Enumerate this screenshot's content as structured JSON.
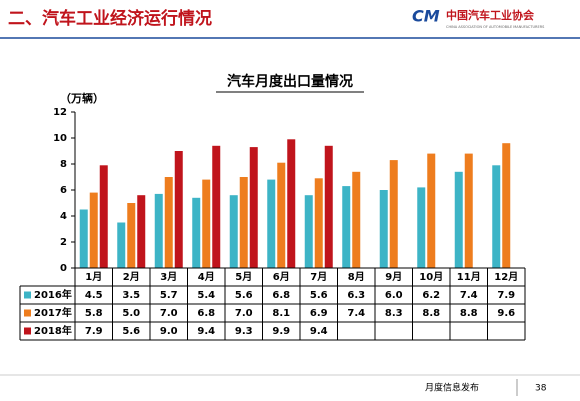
{
  "header": {
    "title": "二、汽车工业经济运行情况",
    "logo_text": "中国汽车工业协会",
    "logo_subtitle": "CHINA ASSOCIATION OF AUTOMOBILE MANUFACTURERS"
  },
  "chart_data": {
    "type": "bar",
    "title": "汽车月度出口量情况",
    "y_label": "（万辆）",
    "categories": [
      "1月",
      "2月",
      "3月",
      "4月",
      "5月",
      "6月",
      "7月",
      "8月",
      "9月",
      "10月",
      "11月",
      "12月"
    ],
    "series": [
      {
        "name": "2016年",
        "color": "#3db4c6",
        "values": [
          4.5,
          3.5,
          5.7,
          5.4,
          5.6,
          6.8,
          5.6,
          6.3,
          6.0,
          6.2,
          7.4,
          7.9
        ],
        "value_labels": [
          "4.5",
          "3.5",
          "5.7",
          "5.4",
          "5.6",
          "6.8",
          "5.6",
          "6.3",
          "6.0",
          "6.2",
          "7.4",
          "7.9"
        ]
      },
      {
        "name": "2017年",
        "color": "#ee7d1e",
        "values": [
          5.8,
          5.0,
          7.0,
          6.8,
          7.0,
          8.1,
          6.9,
          7.4,
          8.3,
          8.8,
          8.8,
          9.6
        ],
        "value_labels": [
          "5.8",
          "5.0",
          "7.0",
          "6.8",
          "7.0",
          "8.1",
          "6.9",
          "7.4",
          "8.3",
          "8.8",
          "8.8",
          "9.6"
        ]
      },
      {
        "name": "2018年",
        "color": "#c0141c",
        "values": [
          7.9,
          5.6,
          9.0,
          9.4,
          9.3,
          9.9,
          9.4,
          null,
          null,
          null,
          null,
          null
        ],
        "value_labels": [
          "7.9",
          "5.6",
          "9.0",
          "9.4",
          "9.3",
          "9.9",
          "9.4",
          null,
          null,
          null,
          null,
          null
        ]
      }
    ],
    "ylim": [
      0,
      12
    ],
    "yticks": [
      0,
      2,
      4,
      6,
      8,
      10,
      12
    ]
  },
  "footer": {
    "text": "月度信息发布",
    "page": "38"
  }
}
